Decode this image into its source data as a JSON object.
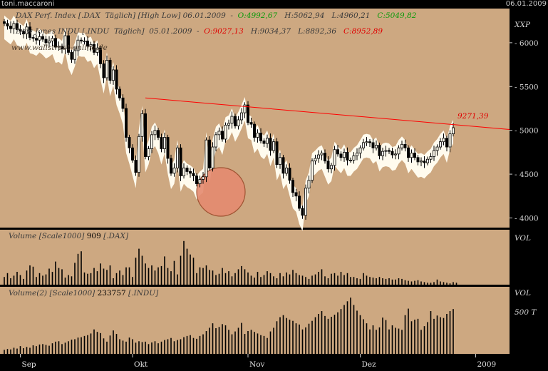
{
  "window": {
    "user": "toni.maccaroni",
    "date": "06.01.2009"
  },
  "legend": {
    "dax_name": "DAX Perf. Index [.DAX  Täglich] [High Low] 06.01.2009",
    "dax_o": "O:4992,67",
    "dax_h": "H:5062,94",
    "dax_l": "L:4960,21",
    "dax_c": "C:5049,82",
    "dow_name": "Dow Jones INDU [.INDU  Täglich]  05.01.2009",
    "dow_o": "O:9027,13",
    "dow_h": "H:9034,37",
    "dow_l": "L:8892,36",
    "dow_c": "C:8952,89",
    "watermark": "www.wallstreet-online.de",
    "vol1": "Volume [Scale1000]",
    "vol1_val": "909",
    "vol1_sym": "[.DAX]",
    "vol2": "Volume(2) [Scale1000]",
    "vol2_val": "233757",
    "vol2_sym": "[.INDU]"
  },
  "axis": {
    "main_label": "XXP",
    "vol_label": "VOL",
    "vol2_label": "VOL",
    "vol2_tick": "500 T",
    "annotation": "9271,39"
  },
  "colors": {
    "panel_bg": "#cda881",
    "frame_bg": "#000000",
    "candle": "#000000",
    "dow_band": "#fffbee",
    "trendline": "#ff0000",
    "highlight": "#e58b70",
    "legend_green": "#0a9a0a",
    "legend_red": "#e00000"
  },
  "chart_data": {
    "type": "candlestick",
    "y_ticks": [
      4000,
      4500,
      5000,
      5500,
      6000
    ],
    "ylim": [
      3890,
      6390
    ],
    "x_labels": [
      "Sep",
      "Okt",
      "Nov",
      "Dez",
      "2009"
    ],
    "x_label_index": [
      5,
      40,
      76,
      111,
      147
    ],
    "dax_close": [
      6220,
      6190,
      6160,
      6220,
      6150,
      6130,
      6100,
      6180,
      6060,
      6050,
      6030,
      6070,
      6040,
      6000,
      6020,
      6050,
      5950,
      5960,
      5930,
      6080,
      5890,
      5810,
      5910,
      6030,
      6020,
      6020,
      5960,
      5980,
      5890,
      5940,
      5760,
      5600,
      5800,
      5570,
      5690,
      5470,
      5370,
      5250,
      4920,
      4800,
      4660,
      4520,
      4930,
      5190,
      4700,
      4790,
      4950,
      5000,
      4920,
      4790,
      4920,
      4680,
      4510,
      4570,
      4800,
      4480,
      4570,
      4530,
      4510,
      4480,
      4390,
      4440,
      4470,
      4890,
      4570,
      4810,
      4950,
      4990,
      4900,
      5060,
      5080,
      5160,
      5050,
      5120,
      5200,
      5290,
      5090,
      5070,
      4920,
      4970,
      4880,
      4850,
      4910,
      4770,
      4870,
      4610,
      4690,
      4510,
      4570,
      4430,
      4290,
      4250,
      4110,
      4030,
      4340,
      4430,
      4650,
      4680,
      4720,
      4740,
      4650,
      4560,
      4600,
      4780,
      4730,
      4690,
      4750,
      4660,
      4660,
      4710,
      4740,
      4800,
      4860,
      4870,
      4860,
      4800,
      4830,
      4710,
      4760,
      4770,
      4760,
      4720,
      4730,
      4800,
      4840,
      4800,
      4690,
      4740,
      4690,
      4640,
      4650,
      4630,
      4670,
      4700,
      4770,
      4810,
      4870,
      4910,
      4810,
      4960,
      5030
    ],
    "dax_high": 5062.94,
    "dax_low": 4960.21,
    "trendline": {
      "from_index": 44,
      "from_value": 5370,
      "to_value": 5010
    }
  },
  "volume1_data": [
    12,
    18,
    10,
    14,
    20,
    15,
    9,
    22,
    30,
    28,
    12,
    18,
    14,
    16,
    25,
    20,
    36,
    26,
    24,
    11,
    15,
    13,
    34,
    48,
    52,
    19,
    17,
    18,
    26,
    21,
    33,
    25,
    23,
    30,
    10,
    18,
    22,
    15,
    27,
    27,
    12,
    42,
    56,
    45,
    33,
    26,
    30,
    22,
    27,
    29,
    44,
    26,
    21,
    37,
    16,
    45,
    68,
    56,
    47,
    42,
    18,
    27,
    26,
    30,
    23,
    22,
    15,
    17,
    26,
    18,
    21,
    13,
    18,
    24,
    29,
    24,
    19,
    14,
    11,
    20,
    12,
    15,
    21,
    18,
    13,
    10,
    18,
    13,
    19,
    16,
    23,
    18,
    15,
    14,
    12,
    9,
    14,
    16,
    20,
    24,
    13,
    10,
    17,
    18,
    14,
    20,
    15,
    18,
    12,
    12,
    10,
    9,
    18,
    14,
    12,
    11,
    10,
    12,
    10,
    9,
    10,
    8,
    8,
    10,
    9,
    7,
    6,
    5,
    6,
    7,
    5,
    4,
    3,
    3,
    4,
    8,
    5,
    4,
    3,
    2,
    4,
    3
  ],
  "volume2_data": [
    20,
    24,
    22,
    30,
    26,
    38,
    28,
    34,
    30,
    42,
    38,
    46,
    48,
    44,
    40,
    52,
    60,
    62,
    48,
    55,
    62,
    70,
    72,
    80,
    82,
    88,
    92,
    100,
    120,
    108,
    102,
    76,
    60,
    90,
    115,
    98,
    72,
    65,
    60,
    80,
    72,
    55,
    62,
    58,
    60,
    48,
    56,
    62,
    52,
    60,
    68,
    72,
    78,
    62,
    68,
    72,
    82,
    88,
    92,
    78,
    74,
    88,
    96,
    112,
    128,
    150,
    126,
    132,
    146,
    140,
    118,
    96,
    110,
    128,
    152,
    98,
    112,
    118,
    108,
    100,
    92,
    88,
    78,
    110,
    128,
    160,
    180,
    190,
    176,
    168,
    162,
    150,
    144,
    120,
    130,
    148,
    162,
    180,
    196,
    210,
    186,
    172,
    182,
    192,
    204,
    220,
    240,
    258,
    276,
    240,
    212,
    190,
    170,
    150,
    120,
    140,
    118,
    130,
    178,
    166,
    120,
    140,
    128,
    124,
    118,
    190,
    222,
    160,
    168,
    172,
    118,
    136,
    156,
    210,
    172,
    188,
    180,
    176,
    196,
    210,
    220
  ]
}
